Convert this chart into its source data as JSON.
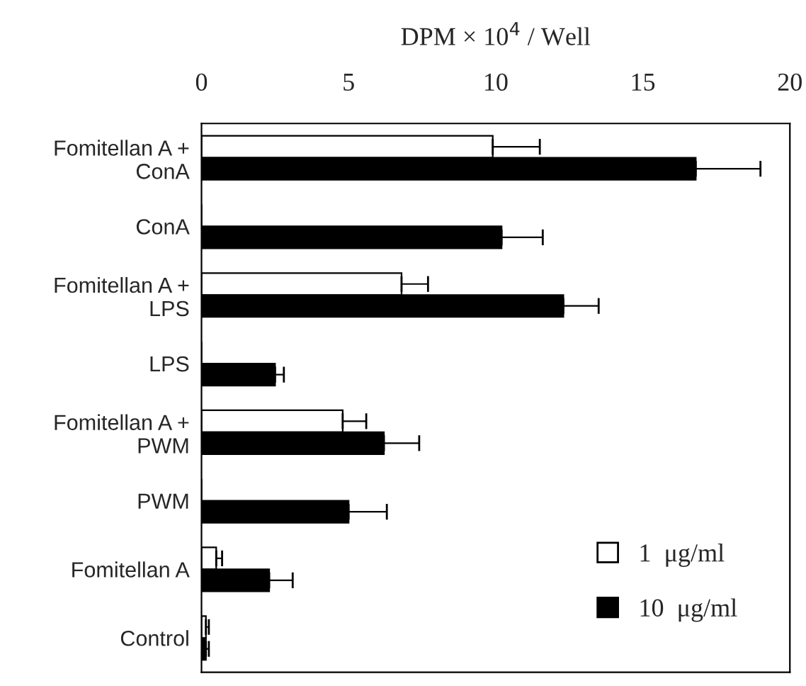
{
  "chart_data": {
    "type": "bar",
    "orientation": "horizontal",
    "xlabel": "DPM × 10$^{4}$ / Well",
    "categories": [
      "Fomitellan A +\nConA",
      "ConA",
      "Fomitellan A +\nLPS",
      "LPS",
      "Fomitellan A +\nPWM",
      "PWM",
      "Fomitellan A",
      "Control"
    ],
    "series": [
      {
        "name": "1  μg/ml",
        "color": "#ffffff",
        "values": [
          9.9,
          null,
          6.8,
          null,
          4.8,
          null,
          0.5,
          0.15
        ],
        "errors": [
          1.6,
          null,
          0.9,
          null,
          0.8,
          null,
          0.2,
          0.1
        ]
      },
      {
        "name": "10  μg/ml",
        "color": "#000000",
        "values": [
          16.8,
          10.2,
          12.3,
          2.5,
          6.2,
          5.0,
          2.3,
          0.15
        ],
        "errors": [
          2.2,
          1.4,
          1.2,
          0.3,
          1.2,
          1.3,
          0.8,
          0.1
        ]
      }
    ],
    "xlim": [
      0,
      20
    ],
    "xticks": [
      0,
      5,
      10,
      15,
      20
    ],
    "grid": false,
    "legend": "bottom right"
  }
}
